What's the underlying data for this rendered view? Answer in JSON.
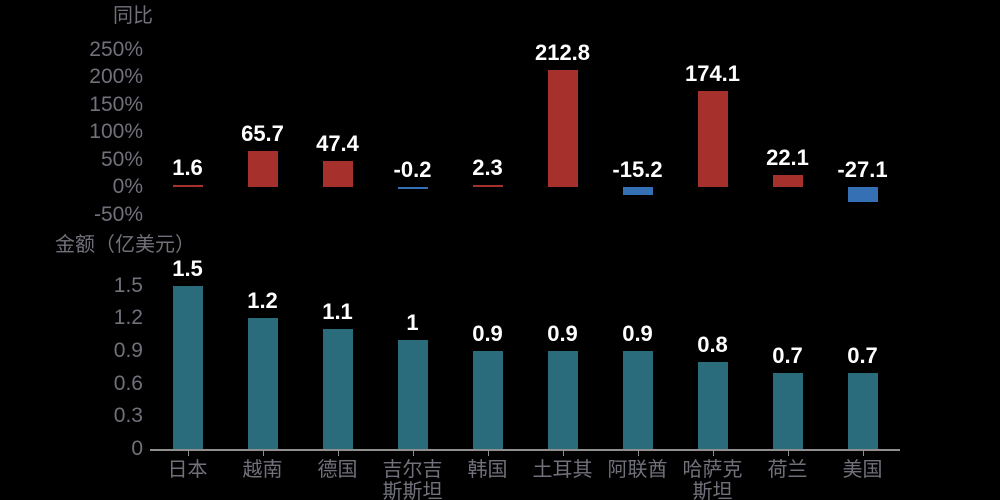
{
  "colors": {
    "background": "#000000",
    "axis_text": "#71717B",
    "axis_line": "#8F8F8F",
    "value_label_text": "#FFFFFF",
    "value_label_outline": "#000000",
    "positive_bar": "#A5302C",
    "negative_bar": "#3570B4",
    "amount_bar": "#2A6B7C"
  },
  "chart_data": [
    {
      "type": "bar",
      "title": "同比",
      "unit": "%",
      "categories": [
        "日本",
        "越南",
        "德国",
        "吉尔吉斯斯坦",
        "韩国",
        "土耳其",
        "阿联酋",
        "哈萨克斯坦",
        "荷兰",
        "美国"
      ],
      "values": [
        1.6,
        65.7,
        47.4,
        -0.2,
        2.3,
        212.8,
        -15.2,
        174.1,
        22.1,
        -27.1
      ],
      "value_labels": [
        "1.6",
        "65.7",
        "47.4",
        "-0.2",
        "2.3",
        "212.8",
        "-15.2",
        "174.1",
        "22.1",
        "-27.1"
      ],
      "ylim": [
        -50,
        250
      ],
      "ytick_labels": [
        "250%",
        "200%",
        "150%",
        "100%",
        "50%",
        "0%",
        "-50%"
      ],
      "ytick_values": [
        250,
        200,
        150,
        100,
        50,
        0,
        -50
      ],
      "bar_color_rule": "red-positive-blue-negative",
      "x_labels_visible": false,
      "x_axis_line": false,
      "grid": false,
      "legend": false
    },
    {
      "type": "bar",
      "title": "金额（亿美元）",
      "unit": "亿美元",
      "categories": [
        "日本",
        "越南",
        "德国",
        "吉尔吉斯斯坦",
        "韩国",
        "土耳其",
        "阿联酋",
        "哈萨克斯坦",
        "荷兰",
        "美国"
      ],
      "category_display": [
        "日本",
        "越南",
        "德国",
        "吉尔吉\n斯斯坦",
        "韩国",
        "土耳其",
        "阿联酋",
        "哈萨克\n斯坦",
        "荷兰",
        "美国"
      ],
      "values": [
        1.5,
        1.2,
        1.1,
        1,
        0.9,
        0.9,
        0.9,
        0.8,
        0.7,
        0.7
      ],
      "value_labels": [
        "1.5",
        "1.2",
        "1.1",
        "1",
        "0.9",
        "0.9",
        "0.9",
        "0.8",
        "0.7",
        "0.7"
      ],
      "ylim": [
        0,
        1.5
      ],
      "ytick_labels": [
        "1.5",
        "1.2",
        "0.9",
        "0.6",
        "0.3",
        "0"
      ],
      "ytick_values": [
        1.5,
        1.2,
        0.9,
        0.6,
        0.3,
        0
      ],
      "bar_color_rule": "teal",
      "x_labels_visible": true,
      "x_axis_line": true,
      "grid": false,
      "legend": false
    }
  ]
}
